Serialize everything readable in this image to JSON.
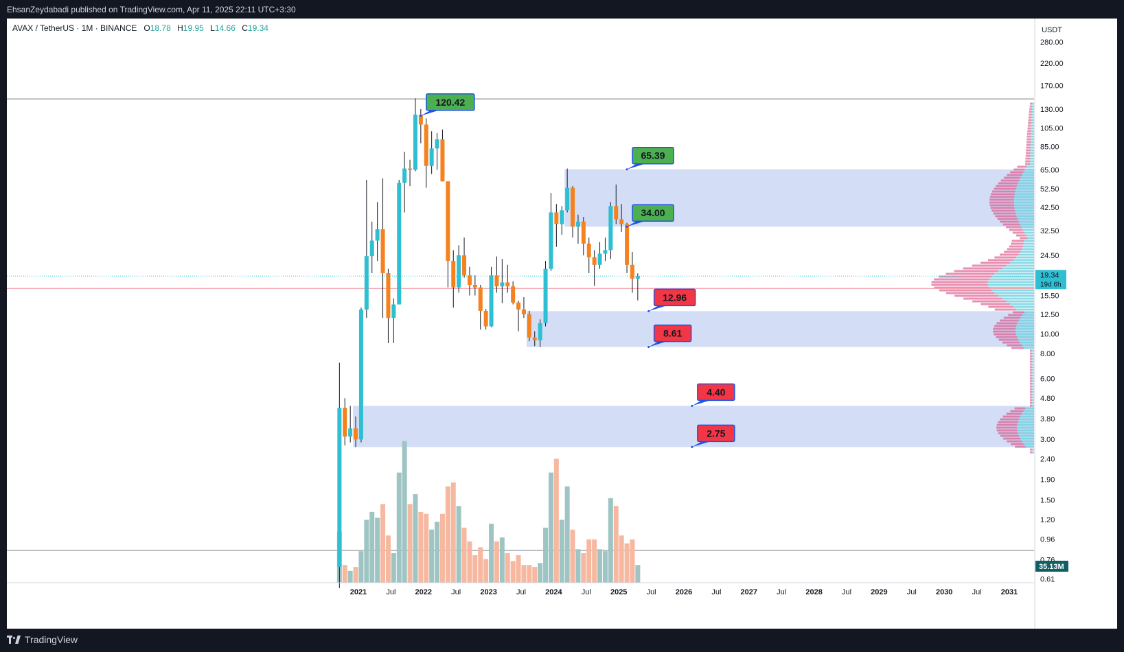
{
  "header": {
    "publisher_text": "EhsanZeydabadi published on TradingView.com, Apr 11, 2025 22:11 UTC+3:30"
  },
  "legend": {
    "symbol": "AVAX / TetherUS · 1M · BINANCE",
    "open_key": "O",
    "open": "18.78",
    "high_key": "H",
    "high": "19.95",
    "low_key": "L",
    "low": "14.66",
    "close_key": "C",
    "close": "19.34"
  },
  "footer": {
    "brand": "TradingView"
  },
  "colors": {
    "up": "#2ebfd2",
    "down": "#f5821f",
    "vol_up": "#9ec5c3",
    "vol_down": "#f6b8a0",
    "zone": "#c5d1f3",
    "label_green": "#4caf50",
    "label_red": "#f23645",
    "label_border": "#1e53e5"
  },
  "chart_data": {
    "type": "candlestick",
    "symbol": "AVAX / TetherUS",
    "interval": "1M",
    "exchange": "BINANCE",
    "price_axis_unit": "USDT",
    "scale": "log",
    "price_ticks": [
      "280.00",
      "220.00",
      "170.00",
      "130.00",
      "105.00",
      "85.00",
      "65.00",
      "52.50",
      "42.50",
      "32.50",
      "24.50",
      "15.50",
      "12.50",
      "10.00",
      "8.00",
      "6.00",
      "4.80",
      "3.80",
      "3.00",
      "2.40",
      "1.90",
      "1.50",
      "1.20",
      "0.96",
      "0.76",
      "0.61"
    ],
    "time_ticks": [
      {
        "label": "2021",
        "date": "2021-01"
      },
      {
        "label": "Jul",
        "date": "2021-07"
      },
      {
        "label": "2022",
        "date": "2022-01"
      },
      {
        "label": "Jul",
        "date": "2022-07"
      },
      {
        "label": "2023",
        "date": "2023-01"
      },
      {
        "label": "Jul",
        "date": "2023-07"
      },
      {
        "label": "2024",
        "date": "2024-01"
      },
      {
        "label": "Jul",
        "date": "2024-07"
      },
      {
        "label": "2025",
        "date": "2025-01"
      },
      {
        "label": "Jul",
        "date": "2025-07"
      },
      {
        "label": "2026",
        "date": "2026-01"
      },
      {
        "label": "Jul",
        "date": "2026-07"
      },
      {
        "label": "2027",
        "date": "2027-01"
      },
      {
        "label": "Jul",
        "date": "2027-07"
      },
      {
        "label": "2028",
        "date": "2028-01"
      },
      {
        "label": "Jul",
        "date": "2028-07"
      },
      {
        "label": "2029",
        "date": "2029-01"
      },
      {
        "label": "Jul",
        "date": "2029-07"
      },
      {
        "label": "2030",
        "date": "2030-01"
      },
      {
        "label": "Jul",
        "date": "2030-07"
      },
      {
        "label": "2031",
        "date": "2031-01"
      }
    ],
    "current_price": "19.34",
    "countdown": "19d 6h",
    "volume_label": "35.13M",
    "candles": [
      {
        "d": "2020-09",
        "o": 0.7,
        "h": 7.2,
        "l": 0.55,
        "c": 4.3,
        "v": 2.6
      },
      {
        "d": "2020-10",
        "o": 4.3,
        "h": 4.8,
        "l": 2.8,
        "c": 3.1,
        "v": 0.9
      },
      {
        "d": "2020-11",
        "o": 3.1,
        "h": 4.4,
        "l": 2.9,
        "c": 3.4,
        "v": 0.6
      },
      {
        "d": "2020-12",
        "o": 3.4,
        "h": 3.9,
        "l": 2.75,
        "c": 3.0,
        "v": 0.8
      },
      {
        "d": "2021-01",
        "o": 3.0,
        "h": 13.5,
        "l": 2.9,
        "c": 13.2,
        "v": 1.6
      },
      {
        "d": "2021-02",
        "o": 13.2,
        "h": 58.0,
        "l": 12.0,
        "c": 24.3,
        "v": 3.2
      },
      {
        "d": "2021-03",
        "o": 24.3,
        "h": 36.0,
        "l": 20.0,
        "c": 29.0,
        "v": 3.6
      },
      {
        "d": "2021-04",
        "o": 29.0,
        "h": 45.0,
        "l": 23.0,
        "c": 33.0,
        "v": 3.3
      },
      {
        "d": "2021-05",
        "o": 33.0,
        "h": 59.0,
        "l": 12.0,
        "c": 20.0,
        "v": 4.0
      },
      {
        "d": "2021-06",
        "o": 20.0,
        "h": 21.0,
        "l": 9.0,
        "c": 12.0,
        "v": 2.4
      },
      {
        "d": "2021-07",
        "o": 12.0,
        "h": 15.0,
        "l": 9.0,
        "c": 14.0,
        "v": 1.5
      },
      {
        "d": "2021-08",
        "o": 14.0,
        "h": 58.0,
        "l": 14.0,
        "c": 56.0,
        "v": 5.6
      },
      {
        "d": "2021-09",
        "o": 56.0,
        "h": 80.0,
        "l": 40.0,
        "c": 66.0,
        "v": 7.2
      },
      {
        "d": "2021-10",
        "o": 66.0,
        "h": 73.0,
        "l": 54.0,
        "c": 65.0,
        "v": 4.0
      },
      {
        "d": "2021-11",
        "o": 65.0,
        "h": 147.0,
        "l": 64.0,
        "c": 122.0,
        "v": 4.5
      },
      {
        "d": "2021-12",
        "o": 122.0,
        "h": 130.0,
        "l": 88.0,
        "c": 109.0,
        "v": 3.6
      },
      {
        "d": "2022-01",
        "o": 109.0,
        "h": 117.0,
        "l": 53.0,
        "c": 68.0,
        "v": 3.5
      },
      {
        "d": "2022-02",
        "o": 68.0,
        "h": 101.0,
        "l": 62.0,
        "c": 83.0,
        "v": 2.7
      },
      {
        "d": "2022-03",
        "o": 83.0,
        "h": 99.0,
        "l": 65.0,
        "c": 92.0,
        "v": 3.1
      },
      {
        "d": "2022-04",
        "o": 92.0,
        "h": 103.0,
        "l": 57.0,
        "c": 57.0,
        "v": 3.5
      },
      {
        "d": "2022-05",
        "o": 57.0,
        "h": 57.0,
        "l": 17.0,
        "c": 23.0,
        "v": 4.9
      },
      {
        "d": "2022-06",
        "o": 23.0,
        "h": 26.0,
        "l": 13.5,
        "c": 17.0,
        "v": 5.1
      },
      {
        "d": "2022-07",
        "o": 17.0,
        "h": 27.5,
        "l": 16.0,
        "c": 24.5,
        "v": 3.9
      },
      {
        "d": "2022-08",
        "o": 24.5,
        "h": 30.0,
        "l": 19.0,
        "c": 19.5,
        "v": 2.8
      },
      {
        "d": "2022-09",
        "o": 19.5,
        "h": 21.5,
        "l": 15.5,
        "c": 17.5,
        "v": 2.1
      },
      {
        "d": "2022-10",
        "o": 17.5,
        "h": 19.5,
        "l": 15.5,
        "c": 17.0,
        "v": 1.4
      },
      {
        "d": "2022-11",
        "o": 17.0,
        "h": 17.5,
        "l": 10.5,
        "c": 13.0,
        "v": 1.8
      },
      {
        "d": "2022-12",
        "o": 13.0,
        "h": 13.3,
        "l": 10.5,
        "c": 10.9,
        "v": 1.2
      },
      {
        "d": "2023-01",
        "o": 10.9,
        "h": 21.5,
        "l": 10.8,
        "c": 19.5,
        "v": 3.0
      },
      {
        "d": "2023-02",
        "o": 19.5,
        "h": 24.2,
        "l": 16.0,
        "c": 17.2,
        "v": 2.1
      },
      {
        "d": "2023-03",
        "o": 17.2,
        "h": 23.5,
        "l": 14.2,
        "c": 18.0,
        "v": 2.3
      },
      {
        "d": "2023-04",
        "o": 18.0,
        "h": 22.0,
        "l": 16.0,
        "c": 17.2,
        "v": 1.5
      },
      {
        "d": "2023-05",
        "o": 17.2,
        "h": 18.2,
        "l": 14.0,
        "c": 14.3,
        "v": 1.1
      },
      {
        "d": "2023-06",
        "o": 14.3,
        "h": 14.6,
        "l": 10.3,
        "c": 13.2,
        "v": 1.4
      },
      {
        "d": "2023-07",
        "o": 13.2,
        "h": 15.2,
        "l": 12.0,
        "c": 12.5,
        "v": 0.9
      },
      {
        "d": "2023-08",
        "o": 12.5,
        "h": 13.0,
        "l": 9.2,
        "c": 9.6,
        "v": 0.9
      },
      {
        "d": "2023-09",
        "o": 9.6,
        "h": 10.3,
        "l": 8.7,
        "c": 9.3,
        "v": 0.8
      },
      {
        "d": "2023-10",
        "o": 9.3,
        "h": 11.8,
        "l": 8.6,
        "c": 11.3,
        "v": 1.0
      },
      {
        "d": "2023-11",
        "o": 11.3,
        "h": 23.0,
        "l": 10.9,
        "c": 21.0,
        "v": 2.8
      },
      {
        "d": "2023-12",
        "o": 21.0,
        "h": 50.0,
        "l": 20.5,
        "c": 40.0,
        "v": 5.6
      },
      {
        "d": "2024-01",
        "o": 40.0,
        "h": 44.0,
        "l": 27.0,
        "c": 35.0,
        "v": 6.3
      },
      {
        "d": "2024-02",
        "o": 35.0,
        "h": 43.0,
        "l": 31.0,
        "c": 41.0,
        "v": 3.2
      },
      {
        "d": "2024-03",
        "o": 41.0,
        "h": 66.0,
        "l": 40.0,
        "c": 53.0,
        "v": 4.9
      },
      {
        "d": "2024-04",
        "o": 53.0,
        "h": 54.0,
        "l": 30.0,
        "c": 34.0,
        "v": 2.7
      },
      {
        "d": "2024-05",
        "o": 34.0,
        "h": 39.0,
        "l": 28.0,
        "c": 36.0,
        "v": 1.7
      },
      {
        "d": "2024-06",
        "o": 36.0,
        "h": 38.0,
        "l": 24.5,
        "c": 28.0,
        "v": 1.5
      },
      {
        "d": "2024-07",
        "o": 28.0,
        "h": 30.0,
        "l": 20.0,
        "c": 24.0,
        "v": 2.2
      },
      {
        "d": "2024-08",
        "o": 24.0,
        "h": 26.0,
        "l": 17.3,
        "c": 22.0,
        "v": 2.2
      },
      {
        "d": "2024-09",
        "o": 22.0,
        "h": 28.5,
        "l": 21.0,
        "c": 25.0,
        "v": 1.7
      },
      {
        "d": "2024-10",
        "o": 25.0,
        "h": 30.0,
        "l": 23.0,
        "c": 26.0,
        "v": 1.6
      },
      {
        "d": "2024-11",
        "o": 26.0,
        "h": 45.0,
        "l": 23.5,
        "c": 43.0,
        "v": 4.3
      },
      {
        "d": "2024-12",
        "o": 43.0,
        "h": 55.0,
        "l": 35.0,
        "c": 37.0,
        "v": 3.9
      },
      {
        "d": "2025-01",
        "o": 37.0,
        "h": 44.0,
        "l": 32.0,
        "c": 35.0,
        "v": 2.4
      },
      {
        "d": "2025-02",
        "o": 35.0,
        "h": 35.5,
        "l": 20.0,
        "c": 22.0,
        "v": 2.0
      },
      {
        "d": "2025-03",
        "o": 22.0,
        "h": 25.5,
        "l": 16.0,
        "c": 18.78,
        "v": 2.2
      },
      {
        "d": "2025-04",
        "o": 18.78,
        "h": 19.95,
        "l": 14.66,
        "c": 19.34,
        "v": 0.9
      }
    ],
    "horizontal_lines": [
      {
        "price": 146.0,
        "color": "#787b86",
        "note": "all-time high level"
      }
    ],
    "zones": [
      {
        "from": "2024-03",
        "to_edge": true,
        "top": 65.39,
        "bottom": 34.0
      },
      {
        "from": "2023-08",
        "to_edge": true,
        "top": 12.96,
        "bottom": 8.61
      },
      {
        "from": "2020-12",
        "to_edge": true,
        "top": 4.4,
        "bottom": 2.75
      }
    ],
    "callouts": [
      {
        "text": "120.42",
        "price": 120.42,
        "date": "2021-12",
        "style": "green"
      },
      {
        "text": "65.39",
        "price": 65.39,
        "date": "2025-02",
        "style": "green"
      },
      {
        "text": "34.00",
        "price": 34.0,
        "date": "2025-02",
        "style": "green"
      },
      {
        "text": "12.96",
        "price": 12.96,
        "date": "2025-06",
        "style": "red"
      },
      {
        "text": "8.61",
        "price": 8.61,
        "date": "2025-06",
        "style": "red"
      },
      {
        "text": "4.40",
        "price": 4.4,
        "date": "2026-02",
        "style": "red"
      },
      {
        "text": "2.75",
        "price": 2.75,
        "date": "2026-02",
        "style": "red"
      }
    ],
    "volume_profile": "visible-range profile along right edge (cyan up-volume, magenta down-volume)"
  }
}
